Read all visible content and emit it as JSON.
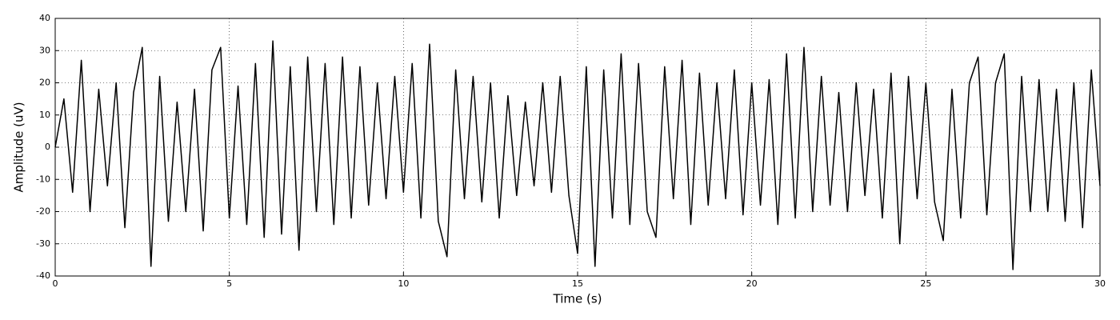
{
  "chart_data": {
    "type": "line",
    "xlabel": "Time (s)",
    "ylabel": "Amplitude (uV)",
    "x": [
      0,
      0.25,
      0.5,
      0.75,
      1,
      1.25,
      1.5,
      1.75,
      2,
      2.25,
      2.5,
      2.75,
      3,
      3.25,
      3.5,
      3.75,
      4,
      4.25,
      4.5,
      4.75,
      5,
      5.25,
      5.5,
      5.75,
      6,
      6.25,
      6.5,
      6.75,
      7,
      7.25,
      7.5,
      7.75,
      8,
      8.25,
      8.5,
      8.75,
      9,
      9.25,
      9.5,
      9.75,
      10,
      10.25,
      10.5,
      10.75,
      11,
      11.25,
      11.5,
      11.75,
      12,
      12.25,
      12.5,
      12.75,
      13,
      13.25,
      13.5,
      13.75,
      14,
      14.25,
      14.5,
      14.75,
      15,
      15.25,
      15.5,
      15.75,
      16,
      16.25,
      16.5,
      16.75,
      17,
      17.25,
      17.5,
      17.75,
      18,
      18.25,
      18.5,
      18.75,
      19,
      19.25,
      19.5,
      19.75,
      20,
      20.25,
      20.5,
      20.75,
      21,
      21.25,
      21.5,
      21.75,
      22,
      22.25,
      22.5,
      22.75,
      23,
      23.25,
      23.5,
      23.75,
      24,
      24.25,
      24.5,
      24.75,
      25,
      25.25,
      25.5,
      25.75,
      26,
      26.25,
      26.5,
      26.75,
      27,
      27.25,
      27.5,
      27.75,
      28,
      28.25,
      28.5,
      28.75,
      29,
      29.25,
      29.5,
      29.75,
      30
    ],
    "values": [
      0,
      15,
      -14,
      27,
      -20,
      18,
      -12,
      20,
      -25,
      17,
      31,
      -37,
      22,
      -23,
      14,
      -20,
      18,
      -26,
      24,
      31,
      -22,
      19,
      -24,
      26,
      -28,
      33,
      -27,
      25,
      -32,
      28,
      -20,
      26,
      -24,
      28,
      -22,
      25,
      -18,
      20,
      -16,
      22,
      -14,
      26,
      -22,
      32,
      -23,
      -34,
      24,
      -16,
      22,
      -17,
      20,
      -22,
      16,
      -15,
      14,
      -12,
      20,
      -14,
      22,
      -15,
      -33,
      25,
      -37,
      24,
      -22,
      29,
      -24,
      26,
      -20,
      -28,
      25,
      -16,
      27,
      -24,
      23,
      -18,
      20,
      -16,
      24,
      -21,
      20,
      -18,
      21,
      -24,
      29,
      -22,
      31,
      -20,
      22,
      -18,
      17,
      -20,
      20,
      -15,
      18,
      -22,
      23,
      -30,
      22,
      -16,
      20,
      -17,
      -29,
      18,
      -22,
      20,
      28,
      -21,
      20,
      29,
      -38,
      22,
      -20,
      21,
      -20,
      18,
      -23,
      20,
      -25,
      24,
      -12
    ],
    "color": "#000000",
    "xlim": [
      0,
      30
    ],
    "xticks": [
      0,
      5,
      10,
      15,
      20,
      25,
      30
    ],
    "ylim": [
      -40,
      40
    ],
    "yticks": [
      -40,
      -30,
      -20,
      -10,
      0,
      10,
      20,
      30,
      40
    ],
    "grid": true
  }
}
